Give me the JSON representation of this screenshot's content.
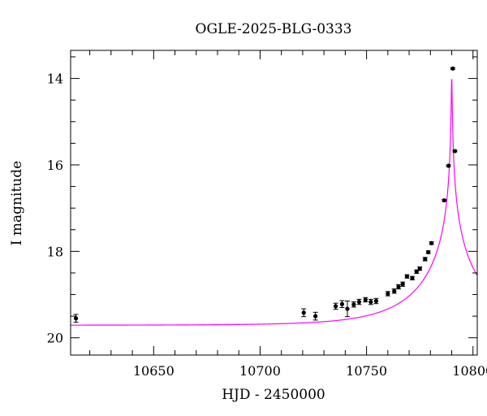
{
  "chart_data": {
    "type": "scatter",
    "title": "OGLE-2025-BLG-0333",
    "xlabel": "HJD - 2450000",
    "ylabel": "I magnitude",
    "xlim": [
      10611,
      10802
    ],
    "ylim": [
      20.4,
      13.35
    ],
    "y_inverted": true,
    "xticks_major": [
      10650,
      10700,
      10750,
      10800
    ],
    "xtick_labels": [
      "10650",
      "10700",
      "10750",
      "10800"
    ],
    "yticks_major": [
      14,
      16,
      18,
      20
    ],
    "ytick_labels": [
      "14",
      "16",
      "18",
      "20"
    ],
    "grid": false,
    "series": [
      {
        "kind": "points_with_errorbars",
        "color": "#000000",
        "points": [
          {
            "x": 10613.5,
            "y": 19.55,
            "err": 0.09
          },
          {
            "x": 10720.5,
            "y": 19.42,
            "err": 0.09
          },
          {
            "x": 10726.0,
            "y": 19.5,
            "err": 0.09
          },
          {
            "x": 10735.5,
            "y": 19.27,
            "err": 0.07
          },
          {
            "x": 10738.5,
            "y": 19.22,
            "err": 0.08
          },
          {
            "x": 10741.0,
            "y": 19.33,
            "err": 0.18
          },
          {
            "x": 10744.0,
            "y": 19.23,
            "err": 0.06
          },
          {
            "x": 10746.5,
            "y": 19.17,
            "err": 0.06
          },
          {
            "x": 10749.5,
            "y": 19.12,
            "err": 0.05
          },
          {
            "x": 10752.0,
            "y": 19.17,
            "err": 0.06
          },
          {
            "x": 10754.5,
            "y": 19.15,
            "err": 0.06
          },
          {
            "x": 10760.0,
            "y": 18.98,
            "err": 0.05
          },
          {
            "x": 10763.0,
            "y": 18.92,
            "err": 0.05
          },
          {
            "x": 10765.0,
            "y": 18.82,
            "err": 0.05
          },
          {
            "x": 10767.0,
            "y": 18.76,
            "err": 0.05
          },
          {
            "x": 10769.0,
            "y": 18.58,
            "err": 0.04
          },
          {
            "x": 10771.5,
            "y": 18.62,
            "err": 0.04
          },
          {
            "x": 10773.5,
            "y": 18.47,
            "err": 0.04
          },
          {
            "x": 10775.0,
            "y": 18.4,
            "err": 0.04
          },
          {
            "x": 10777.5,
            "y": 18.18,
            "err": 0.04
          },
          {
            "x": 10779.0,
            "y": 18.02,
            "err": 0.03
          },
          {
            "x": 10780.5,
            "y": 17.81,
            "err": 0.03
          },
          {
            "x": 10786.5,
            "y": 16.82,
            "err": 0.02
          },
          {
            "x": 10788.5,
            "y": 16.02,
            "err": 0.02
          },
          {
            "x": 10790.5,
            "y": 13.77,
            "err": 0.02
          },
          {
            "x": 10791.5,
            "y": 15.68,
            "err": 0.02
          }
        ]
      },
      {
        "kind": "model_curve",
        "color": "#ff00ff",
        "t0": 10790.0,
        "tE": 33.0,
        "u0": 0.005,
        "baseline": 19.71
      }
    ]
  }
}
